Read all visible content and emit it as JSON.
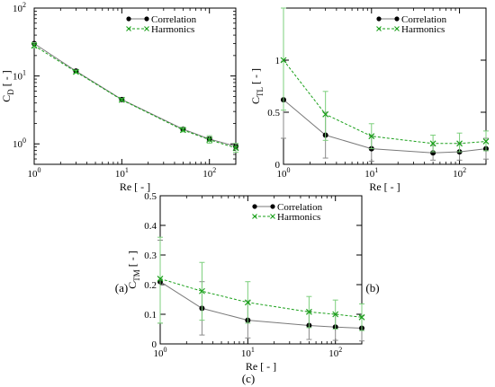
{
  "panels": [
    {
      "label": "(a)",
      "chart_data": {
        "type": "line",
        "xscale": "log",
        "yscale": "log",
        "xlim": [
          1,
          200
        ],
        "ylim": [
          0.5,
          100
        ],
        "xlabel": "Re [ - ]",
        "ylabel_main": "C",
        "ylabel_sub": "D",
        "ylabel_tail": " [ - ]",
        "xticks": [
          {
            "v": 1,
            "m": "10",
            "e": "0"
          },
          {
            "v": 10,
            "m": "10",
            "e": "1"
          },
          {
            "v": 100,
            "m": "10",
            "e": "2"
          }
        ],
        "yticks": [
          {
            "v": 1,
            "m": "10",
            "e": "0"
          },
          {
            "v": 10,
            "m": "10",
            "e": "1"
          },
          {
            "v": 100,
            "m": "10",
            "e": "2"
          }
        ],
        "legend_position": "top-right",
        "series": [
          {
            "name": "Correlation",
            "color": "#000000",
            "marker": "circle",
            "dashed": false,
            "x": [
              1,
              3,
              10,
              50,
              100,
              200
            ],
            "y": [
              30,
              11.8,
              4.5,
              1.65,
              1.18,
              0.92
            ],
            "err": [
              [
                30,
                30
              ],
              [
                11.8,
                11.8
              ],
              [
                4.5,
                4.5
              ],
              [
                1.58,
                1.72
              ],
              [
                1.1,
                1.26
              ],
              [
                0.84,
                0.98
              ]
            ]
          },
          {
            "name": "Harmonics",
            "color": "#1aa01a",
            "marker": "cross",
            "dashed": true,
            "x": [
              1,
              3,
              10,
              50,
              100,
              200
            ],
            "y": [
              28,
              11.5,
              4.45,
              1.6,
              1.15,
              0.87
            ],
            "err": [
              [
                26,
                31
              ],
              [
                11,
                12.2
              ],
              [
                4.3,
                4.65
              ],
              [
                1.5,
                1.75
              ],
              [
                1.02,
                1.32
              ],
              [
                0.75,
                1.02
              ]
            ]
          }
        ]
      }
    },
    {
      "label": "(b)",
      "chart_data": {
        "type": "line",
        "xscale": "log",
        "yscale": "linear",
        "xlim": [
          1,
          200
        ],
        "ylim": [
          0,
          1.5
        ],
        "xlabel": "Re [ - ]",
        "ylabel_main": "C",
        "ylabel_sub": "TL",
        "ylabel_tail": " [ - ]",
        "xticks": [
          {
            "v": 1,
            "m": "10",
            "e": "0"
          },
          {
            "v": 10,
            "m": "10",
            "e": "1"
          },
          {
            "v": 100,
            "m": "10",
            "e": "2"
          }
        ],
        "yticks": [
          {
            "v": 0,
            "m": "0"
          },
          {
            "v": 0.5,
            "m": "0.5"
          },
          {
            "v": 1,
            "m": "1"
          }
        ],
        "legend_position": "top-right",
        "series": [
          {
            "name": "Correlation",
            "color": "#000000",
            "marker": "circle",
            "dashed": false,
            "x": [
              1,
              3,
              10,
              50,
              100,
              200
            ],
            "y": [
              0.62,
              0.28,
              0.15,
              0.11,
              0.12,
              0.15
            ],
            "err": [
              [
                0.25,
                0.99
              ],
              [
                0.06,
                0.5
              ],
              [
                0.03,
                0.27
              ],
              [
                0.04,
                0.18
              ],
              [
                0.04,
                0.2
              ],
              [
                0.05,
                0.25
              ]
            ]
          },
          {
            "name": "Harmonics",
            "color": "#1aa01a",
            "marker": "cross",
            "dashed": true,
            "x": [
              1,
              3,
              10,
              50,
              100,
              200
            ],
            "y": [
              1.0,
              0.48,
              0.27,
              0.2,
              0.2,
              0.22
            ],
            "err": [
              [
                0.52,
                1.5
              ],
              [
                0.23,
                0.7
              ],
              [
                0.15,
                0.39
              ],
              [
                0.12,
                0.28
              ],
              [
                0.12,
                0.3
              ],
              [
                0.13,
                0.32
              ]
            ]
          }
        ]
      }
    },
    {
      "label": "(c)",
      "chart_data": {
        "type": "line",
        "xscale": "log",
        "yscale": "linear",
        "xlim": [
          1,
          200
        ],
        "ylim": [
          0,
          0.5
        ],
        "xlabel": "Re [ - ]",
        "ylabel_main": "C",
        "ylabel_sub": "TM",
        "ylabel_tail": " [ - ]",
        "xticks": [
          {
            "v": 1,
            "m": "10",
            "e": "0"
          },
          {
            "v": 10,
            "m": "10",
            "e": "1"
          },
          {
            "v": 100,
            "m": "10",
            "e": "2"
          }
        ],
        "yticks": [
          {
            "v": 0,
            "m": "0"
          },
          {
            "v": 0.1,
            "m": "0.1"
          },
          {
            "v": 0.2,
            "m": "0.2"
          },
          {
            "v": 0.3,
            "m": "0.3"
          },
          {
            "v": 0.4,
            "m": "0.4"
          },
          {
            "v": 0.5,
            "m": "0.5"
          }
        ],
        "legend_position": "top-right",
        "series": [
          {
            "name": "Correlation",
            "color": "#000000",
            "marker": "circle",
            "dashed": false,
            "x": [
              1,
              3,
              10,
              50,
              100,
              200
            ],
            "y": [
              0.21,
              0.12,
              0.08,
              0.062,
              0.057,
              0.053
            ],
            "err": [
              [
                0.07,
                0.35
              ],
              [
                0.03,
                0.21
              ],
              [
                0.02,
                0.145
              ],
              [
                0.015,
                0.11
              ],
              [
                0.012,
                0.1
              ],
              [
                0.01,
                0.095
              ]
            ]
          },
          {
            "name": "Harmonics",
            "color": "#1aa01a",
            "marker": "cross",
            "dashed": true,
            "x": [
              1,
              3,
              10,
              50,
              100,
              200
            ],
            "y": [
              0.22,
              0.178,
              0.14,
              0.108,
              0.1,
              0.09
            ],
            "err": [
              [
                0.07,
                0.36
              ],
              [
                0.08,
                0.275
              ],
              [
                0.07,
                0.21
              ],
              [
                0.055,
                0.16
              ],
              [
                0.05,
                0.148
              ],
              [
                0.045,
                0.135
              ]
            ]
          }
        ]
      }
    }
  ]
}
